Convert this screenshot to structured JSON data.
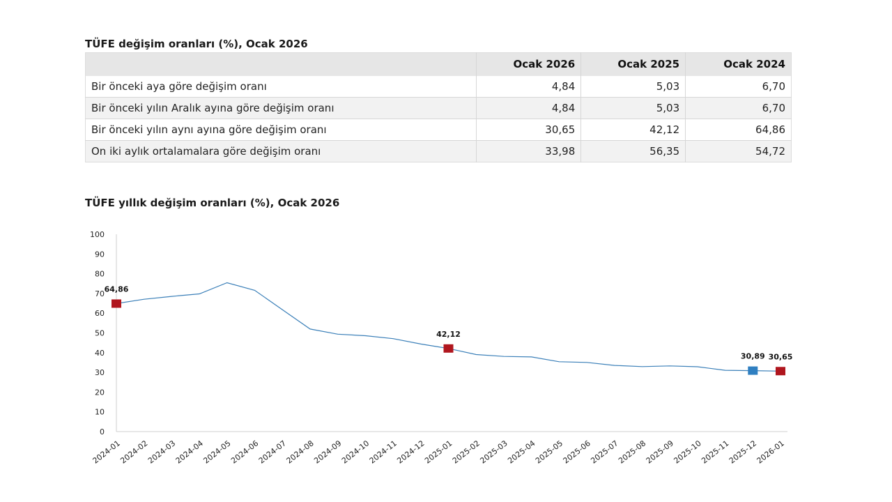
{
  "table": {
    "title": "TÜFE değişim oranları (%), Ocak 2026",
    "headers": [
      "",
      "Ocak 2026",
      "Ocak 2025",
      "Ocak 2024"
    ],
    "rows": [
      {
        "label": "Bir önceki aya göre değişim oranı",
        "values": [
          "4,84",
          "5,03",
          "6,70"
        ]
      },
      {
        "label": "Bir önceki yılın Aralık ayına göre değişim oranı",
        "values": [
          "4,84",
          "5,03",
          "6,70"
        ]
      },
      {
        "label": "Bir önceki yılın aynı ayına göre değişim oranı",
        "values": [
          "30,65",
          "42,12",
          "64,86"
        ]
      },
      {
        "label": "On iki aylık ortalamalara göre değişim oranı",
        "values": [
          "33,98",
          "56,35",
          "54,72"
        ]
      }
    ]
  },
  "chart_data": {
    "type": "line",
    "title": "TÜFE yıllık değişim oranları (%), Ocak 2026",
    "xlabel": "",
    "ylabel": "",
    "ylim": [
      0,
      100
    ],
    "yticks": [
      0,
      10,
      20,
      30,
      40,
      50,
      60,
      70,
      80,
      90,
      100
    ],
    "grid": false,
    "legend": "none",
    "line_color": "#3a7fb8",
    "categories": [
      "2024-01",
      "2024-02",
      "2024-03",
      "2024-04",
      "2024-05",
      "2024-06",
      "2024-07",
      "2024-08",
      "2024-09",
      "2024-10",
      "2024-11",
      "2024-12",
      "2025-01",
      "2025-02",
      "2025-03",
      "2025-04",
      "2025-05",
      "2025-06",
      "2025-07",
      "2025-08",
      "2025-09",
      "2025-10",
      "2025-11",
      "2025-12",
      "2026-01"
    ],
    "series": [
      {
        "values": [
          64.86,
          67.07,
          68.5,
          69.8,
          75.45,
          71.6,
          61.78,
          51.97,
          49.38,
          48.58,
          47.09,
          44.38,
          42.12,
          39.05,
          38.1,
          37.86,
          35.41,
          35.05,
          33.52,
          32.95,
          33.29,
          32.87,
          31.07,
          30.89,
          30.65
        ]
      }
    ],
    "highlighted_points": [
      {
        "category": "2024-01",
        "value": 64.86,
        "label": "64,86",
        "color": "#b0161e"
      },
      {
        "category": "2025-01",
        "value": 42.12,
        "label": "42,12",
        "color": "#b0161e"
      },
      {
        "category": "2025-12",
        "value": 30.89,
        "label": "30,89",
        "color": "#2f7fc1"
      },
      {
        "category": "2026-01",
        "value": 30.65,
        "label": "30,65",
        "color": "#b0161e"
      }
    ]
  }
}
